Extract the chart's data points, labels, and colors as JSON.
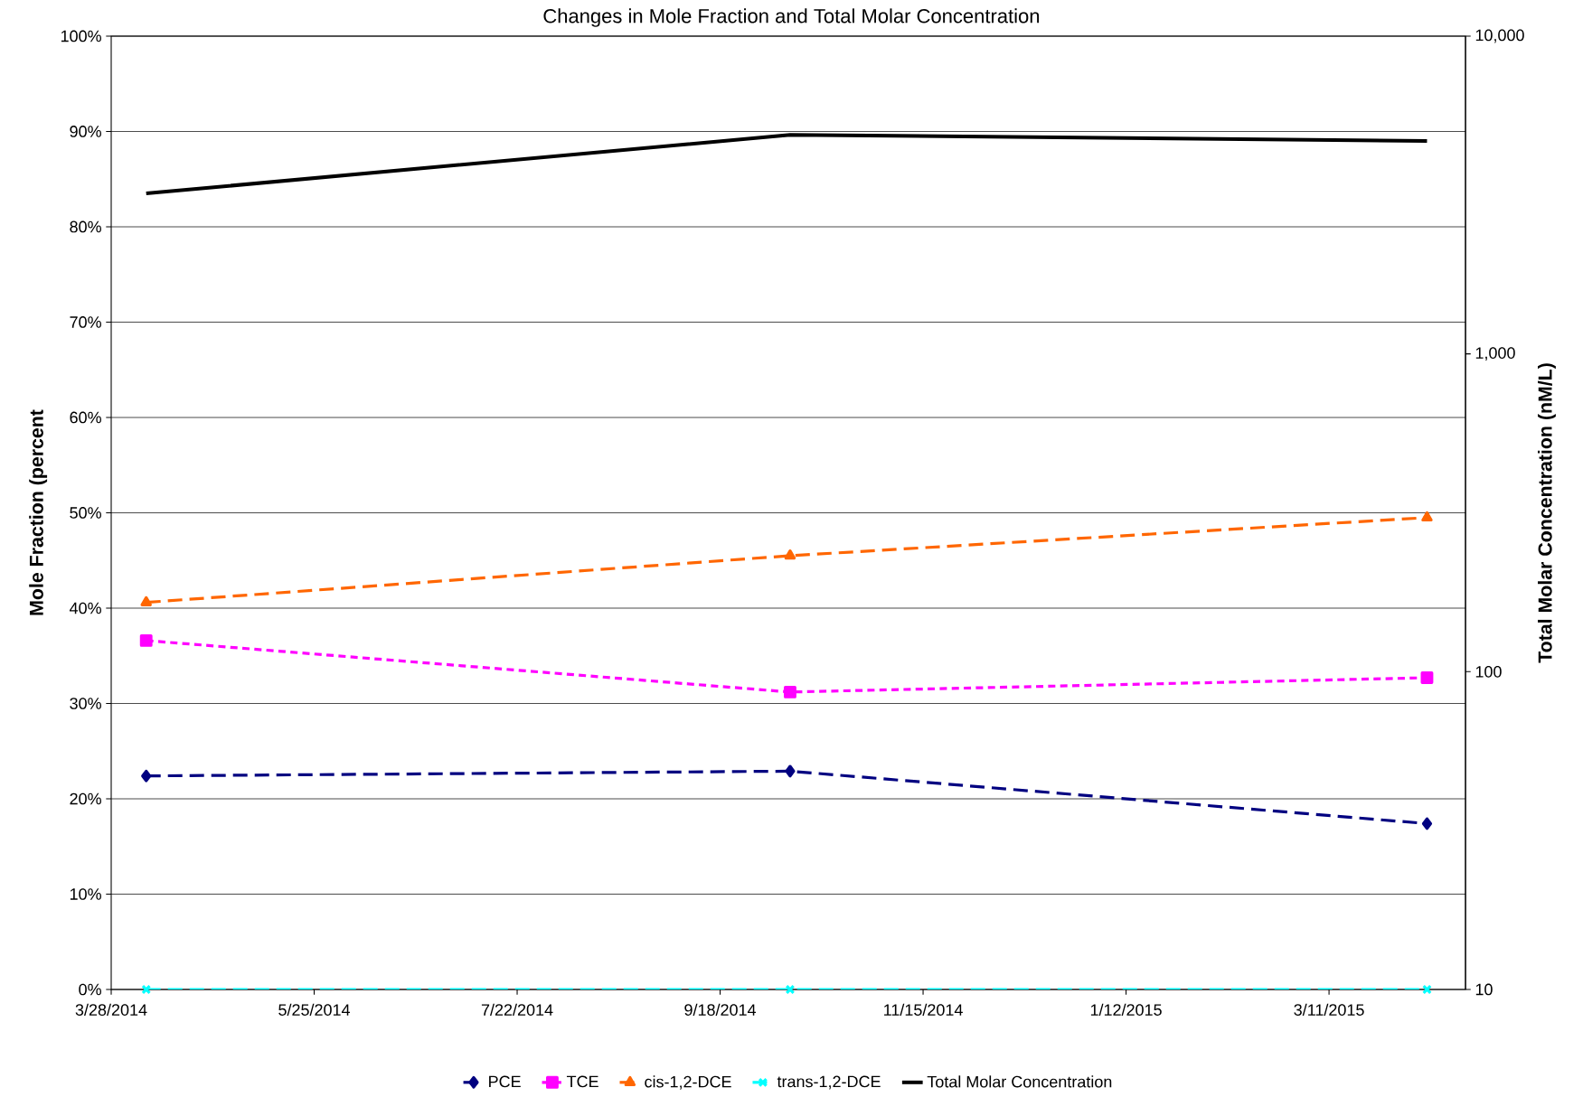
{
  "chart_data": {
    "type": "line",
    "title": "Changes in Mole Fraction and Total Molar Concentration",
    "ylabel": "Mole Fraction (percent",
    "y2label": "Total Molar Concentration (nM/L)",
    "x": [
      "2014-04-07",
      "2014-10-08",
      "2015-04-08"
    ],
    "xlim": [
      "2014-03-28",
      "2015-04-19"
    ],
    "xticks": [
      {
        "value": "2014-03-28",
        "label": "3/28/2014"
      },
      {
        "value": "2014-05-25",
        "label": "5/25/2014"
      },
      {
        "value": "2014-07-22",
        "label": "7/22/2014"
      },
      {
        "value": "2014-09-18",
        "label": "9/18/2014"
      },
      {
        "value": "2014-11-15",
        "label": "11/15/2014"
      },
      {
        "value": "2015-01-12",
        "label": "1/12/2015"
      },
      {
        "value": "2015-03-11",
        "label": "3/11/2015"
      }
    ],
    "ylim": [
      0,
      100
    ],
    "yticks": [
      {
        "value": 0,
        "label": "0%"
      },
      {
        "value": 10,
        "label": "10%"
      },
      {
        "value": 20,
        "label": "20%"
      },
      {
        "value": 30,
        "label": "30%"
      },
      {
        "value": 40,
        "label": "40%"
      },
      {
        "value": 50,
        "label": "50%"
      },
      {
        "value": 60,
        "label": "60%"
      },
      {
        "value": 70,
        "label": "70%"
      },
      {
        "value": 80,
        "label": "80%"
      },
      {
        "value": 90,
        "label": "90%"
      },
      {
        "value": 100,
        "label": "100%"
      }
    ],
    "y2lim": [
      10,
      10000
    ],
    "y2ticks": [
      10,
      100,
      {
        "value": 1000,
        "label": "1,000"
      },
      {
        "value": 10000,
        "label": "10,000"
      }
    ],
    "log": "y2",
    "grid": "y",
    "legend": "bottom",
    "series": [
      {
        "name": "PCE",
        "color": "#000080",
        "values": [
          22.4,
          22.9,
          17.4
        ],
        "marker": "diamond",
        "line_style": "dashed"
      },
      {
        "name": "TCE",
        "color": "#ff00ff",
        "values": [
          36.6,
          31.2,
          32.7
        ],
        "marker": "square",
        "line_style": "dotted"
      },
      {
        "name": "cis-1,2-DCE",
        "color": "#ff6600",
        "values": [
          40.6,
          45.5,
          49.5
        ],
        "marker": "triangle",
        "line_style": "dashed"
      },
      {
        "name": "trans-1,2-DCE",
        "color": "#00ffff",
        "values": [
          0,
          0,
          0
        ],
        "marker": "cross",
        "line_style": "dashed"
      },
      {
        "name": "Total Molar Concentration",
        "color": "#000000",
        "values": [
          3200,
          4890,
          4680
        ],
        "marker": "none",
        "line_style": "solid",
        "axis": "y2"
      }
    ]
  }
}
